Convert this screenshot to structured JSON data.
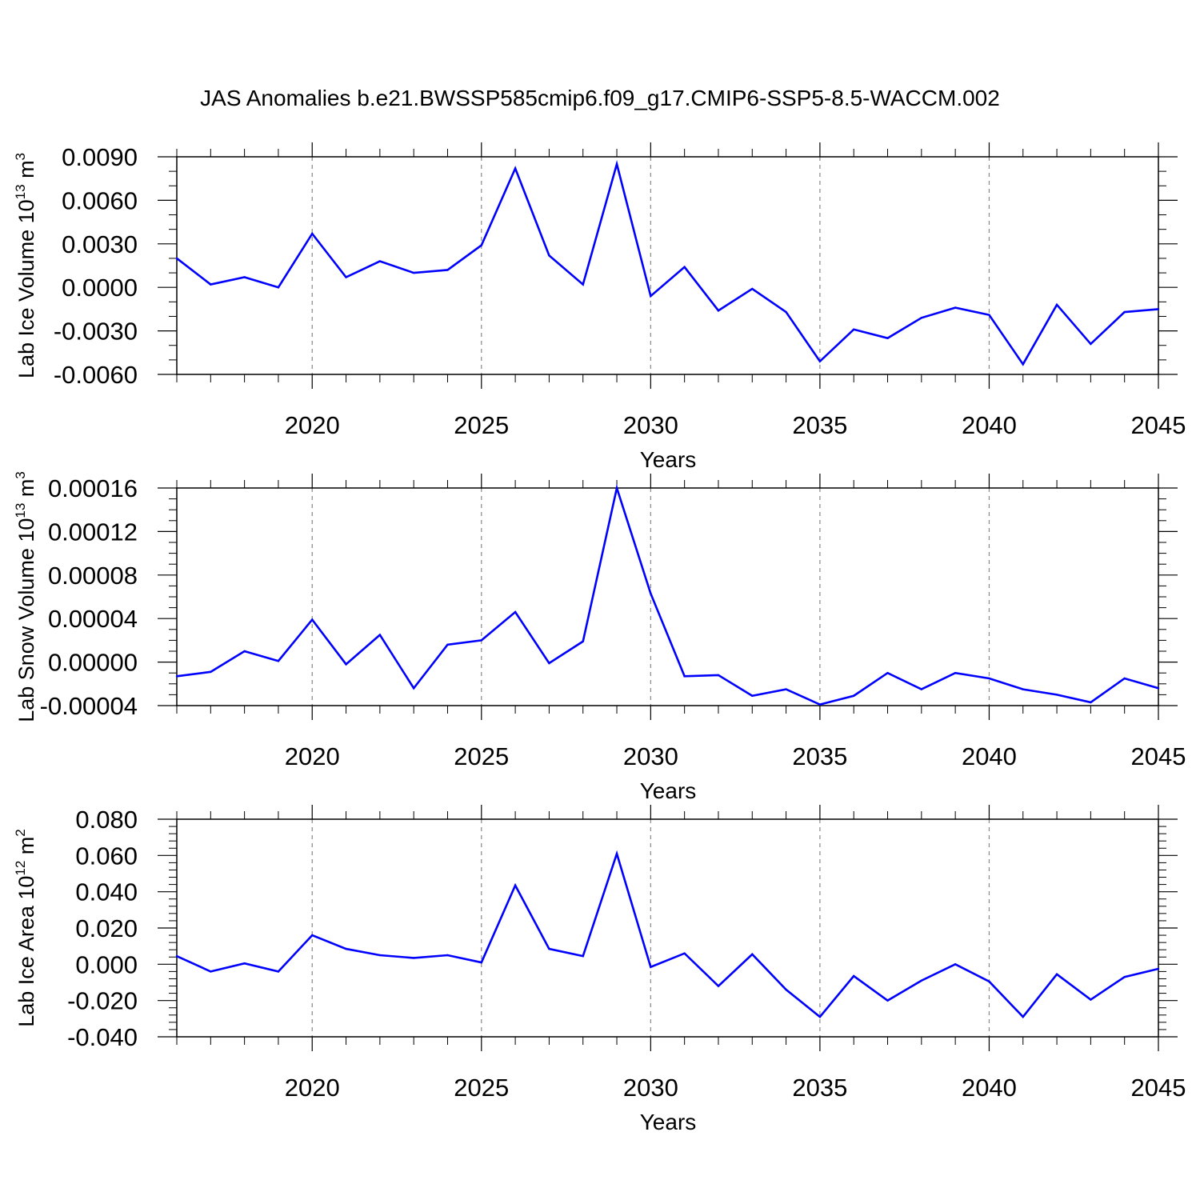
{
  "colors": {
    "line": "#0000ff",
    "axis": "#000000",
    "grid": "#888888",
    "background": "#ffffff"
  },
  "chart_data": [
    {
      "type": "line",
      "title": "JAS Anomalies b.e21.BWSSP585cmip6.f09_g17.CMIP6-SSP5-8.5-WACCM.002",
      "xlabel": "Years",
      "ylabel": {
        "text": "Lab Ice Volume 10",
        "sup": "13",
        "unit": " m",
        "unit_sup": "3"
      },
      "xlim": [
        2016,
        2045
      ],
      "ylim": [
        -0.006,
        0.009
      ],
      "xticks": [
        2020,
        2025,
        2030,
        2035,
        2040,
        2045
      ],
      "xtick_labels": [
        "2020",
        "2025",
        "2030",
        "2035",
        "2040",
        "2045"
      ],
      "yticks": [
        -0.006,
        -0.003,
        0.0,
        0.003,
        0.006,
        0.009
      ],
      "ytick_labels": [
        "-0.0060",
        "-0.0030",
        "0.0000",
        "0.0030",
        "0.0060",
        "0.0090"
      ],
      "yminor_step": 0.001,
      "grid": "vertical dashed at major x ticks",
      "x": [
        2016,
        2017,
        2018,
        2019,
        2020,
        2021,
        2022,
        2023,
        2024,
        2025,
        2026,
        2027,
        2028,
        2029,
        2030,
        2031,
        2032,
        2033,
        2034,
        2035,
        2036,
        2037,
        2038,
        2039,
        2040,
        2041,
        2042,
        2043,
        2044,
        2045
      ],
      "series": [
        {
          "name": "Lab Ice Volume",
          "values": [
            0.002,
            0.0002,
            0.0007,
            0.0,
            0.0037,
            0.0007,
            0.0018,
            0.001,
            0.0012,
            0.0029,
            0.0082,
            0.0022,
            0.0002,
            0.0085,
            -0.0006,
            0.0014,
            -0.0016,
            -0.0001,
            -0.0017,
            -0.0051,
            -0.0029,
            -0.0035,
            -0.0021,
            -0.0014,
            -0.0019,
            -0.0053,
            -0.0012,
            -0.0039,
            -0.0017,
            -0.0015
          ]
        }
      ]
    },
    {
      "type": "line",
      "title": "",
      "xlabel": "Years",
      "ylabel": {
        "text": "Lab Snow Volume 10",
        "sup": "13",
        "unit": " m",
        "unit_sup": "3"
      },
      "xlim": [
        2016,
        2045
      ],
      "ylim": [
        -4e-05,
        0.00016
      ],
      "xticks": [
        2020,
        2025,
        2030,
        2035,
        2040,
        2045
      ],
      "xtick_labels": [
        "2020",
        "2025",
        "2030",
        "2035",
        "2040",
        "2045"
      ],
      "yticks": [
        -4e-05,
        0.0,
        4e-05,
        8e-05,
        0.00012,
        0.00016
      ],
      "ytick_labels": [
        "-0.00004",
        "0.00000",
        "0.00004",
        "0.00008",
        "0.00012",
        "0.00016"
      ],
      "yminor_step": 1e-05,
      "grid": "vertical dashed at major x ticks",
      "x": [
        2016,
        2017,
        2018,
        2019,
        2020,
        2021,
        2022,
        2023,
        2024,
        2025,
        2026,
        2027,
        2028,
        2029,
        2030,
        2031,
        2032,
        2033,
        2034,
        2035,
        2036,
        2037,
        2038,
        2039,
        2040,
        2041,
        2042,
        2043,
        2044,
        2045
      ],
      "series": [
        {
          "name": "Lab Snow Volume",
          "values": [
            -1.3e-05,
            -9e-06,
            1e-05,
            1e-06,
            3.9e-05,
            -2e-06,
            2.5e-05,
            -2.4e-05,
            1.6e-05,
            2e-05,
            4.6e-05,
            -1e-06,
            1.9e-05,
            0.00016,
            6.3e-05,
            -1.3e-05,
            -1.2e-05,
            -3.1e-05,
            -2.5e-05,
            -3.9e-05,
            -3.1e-05,
            -1e-05,
            -2.5e-05,
            -1e-05,
            -1.5e-05,
            -2.5e-05,
            -3e-05,
            -3.7e-05,
            -1.5e-05,
            -2.4e-05
          ]
        }
      ]
    },
    {
      "type": "line",
      "title": "",
      "xlabel": "Years",
      "ylabel": {
        "text": "Lab Ice Area 10",
        "sup": "12",
        "unit": " m",
        "unit_sup": "2"
      },
      "xlim": [
        2016,
        2045
      ],
      "ylim": [
        -0.04,
        0.08
      ],
      "xticks": [
        2020,
        2025,
        2030,
        2035,
        2040,
        2045
      ],
      "xtick_labels": [
        "2020",
        "2025",
        "2030",
        "2035",
        "2040",
        "2045"
      ],
      "yticks": [
        -0.04,
        -0.02,
        0.0,
        0.02,
        0.04,
        0.06,
        0.08
      ],
      "ytick_labels": [
        "-0.040",
        "-0.020",
        "0.000",
        "0.020",
        "0.040",
        "0.060",
        "0.080"
      ],
      "yminor_step": 0.004,
      "grid": "vertical dashed at major x ticks",
      "x": [
        2016,
        2017,
        2018,
        2019,
        2020,
        2021,
        2022,
        2023,
        2024,
        2025,
        2026,
        2027,
        2028,
        2029,
        2030,
        2031,
        2032,
        2033,
        2034,
        2035,
        2036,
        2037,
        2038,
        2039,
        2040,
        2041,
        2042,
        2043,
        2044,
        2045
      ],
      "series": [
        {
          "name": "Lab Ice Area",
          "values": [
            0.0045,
            -0.004,
            0.0005,
            -0.004,
            0.016,
            0.0085,
            0.005,
            0.0035,
            0.005,
            0.001,
            0.0435,
            0.0085,
            0.0045,
            0.061,
            -0.0015,
            0.006,
            -0.012,
            0.0055,
            -0.014,
            -0.029,
            -0.0065,
            -0.02,
            -0.009,
            0.0,
            -0.0095,
            -0.029,
            -0.0055,
            -0.0195,
            -0.007,
            -0.0025
          ]
        }
      ]
    }
  ]
}
